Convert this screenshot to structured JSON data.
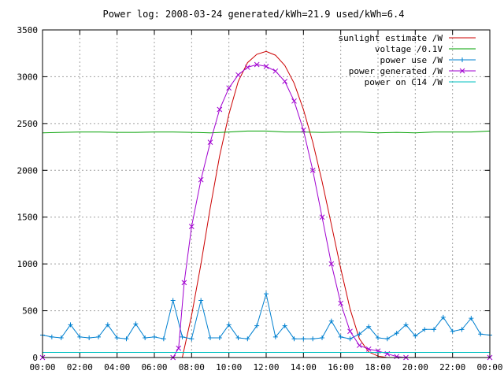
{
  "chart_data": {
    "type": "line",
    "title": "Power log: 2008-03-24 generated/kWh=21.9 used/kWh=6.4",
    "xlabel": "",
    "ylabel": "",
    "xlim": [
      0,
      24
    ],
    "ylim": [
      0,
      3500
    ],
    "grid": true,
    "legend_position": "top-right",
    "x_tick_labels": [
      "00:00",
      "02:00",
      "04:00",
      "06:00",
      "08:00",
      "10:00",
      "12:00",
      "14:00",
      "16:00",
      "18:00",
      "20:00",
      "22:00",
      "00:00"
    ],
    "x_ticks": [
      0,
      2,
      4,
      6,
      8,
      10,
      12,
      14,
      16,
      18,
      20,
      22,
      24
    ],
    "y_ticks": [
      0,
      500,
      1000,
      1500,
      2000,
      2500,
      3000,
      3500
    ],
    "y_tick_labels": [
      "0",
      "500",
      "1000",
      "1500",
      "2000",
      "2500",
      "3000",
      "3500"
    ],
    "series": [
      {
        "name": "sunlight estimate /W",
        "color": "#cc0000",
        "marker": "none",
        "x": [
          7.5,
          8.0,
          8.5,
          9.0,
          9.5,
          10.0,
          10.5,
          11.0,
          11.5,
          12.0,
          12.5,
          13.0,
          13.5,
          14.0,
          14.5,
          15.0,
          15.5,
          16.0,
          16.5,
          17.0,
          17.5,
          18.0,
          18.5
        ],
        "y": [
          0,
          450,
          1000,
          1600,
          2150,
          2600,
          2950,
          3150,
          3240,
          3270,
          3230,
          3120,
          2930,
          2650,
          2300,
          1880,
          1420,
          950,
          520,
          200,
          60,
          15,
          0
        ]
      },
      {
        "name": "voltage /0.1V",
        "color": "#00a000",
        "marker": "none",
        "x": [
          0,
          1,
          2,
          3,
          4,
          5,
          6,
          7,
          8,
          9,
          10,
          11,
          12,
          13,
          14,
          15,
          16,
          17,
          18,
          19,
          20,
          21,
          22,
          23,
          24
        ],
        "y": [
          2400,
          2405,
          2410,
          2410,
          2405,
          2405,
          2410,
          2410,
          2405,
          2400,
          2410,
          2420,
          2420,
          2410,
          2410,
          2405,
          2410,
          2410,
          2400,
          2405,
          2400,
          2410,
          2410,
          2410,
          2420
        ]
      },
      {
        "name": "power use /W",
        "color": "#0080d0",
        "marker": "+",
        "x": [
          0,
          0.5,
          1,
          1.5,
          2,
          2.5,
          3,
          3.5,
          4,
          4.5,
          5,
          5.5,
          6,
          6.5,
          7,
          7.5,
          8,
          8.5,
          9,
          9.5,
          10,
          10.5,
          11,
          11.5,
          12,
          12.5,
          13,
          13.5,
          14,
          14.5,
          15,
          15.5,
          16,
          16.5,
          17,
          17.5,
          18,
          18.5,
          19,
          19.5,
          20,
          20.5,
          21,
          21.5,
          22,
          22.5,
          23,
          23.5,
          24
        ],
        "y": [
          240,
          220,
          210,
          350,
          220,
          210,
          220,
          350,
          210,
          200,
          360,
          210,
          220,
          200,
          610,
          220,
          200,
          610,
          210,
          210,
          350,
          210,
          200,
          340,
          680,
          220,
          340,
          200,
          200,
          200,
          210,
          390,
          220,
          200,
          250,
          330,
          210,
          200,
          260,
          350,
          230,
          300,
          300,
          430,
          280,
          300,
          420,
          250,
          240
        ]
      },
      {
        "name": "power generated /W",
        "color": "#a000d0",
        "marker": "x",
        "x": [
          0,
          7.0,
          7.3,
          7.6,
          8.0,
          8.5,
          9.0,
          9.5,
          10.0,
          10.5,
          11.0,
          11.5,
          12.0,
          12.5,
          13.0,
          13.5,
          14.0,
          14.5,
          15.0,
          15.5,
          16.0,
          16.5,
          17.0,
          17.5,
          18.0,
          18.5,
          19.0,
          19.5,
          24
        ],
        "y": [
          0,
          0,
          100,
          800,
          1400,
          1900,
          2300,
          2650,
          2880,
          3020,
          3100,
          3130,
          3110,
          3060,
          2950,
          2740,
          2430,
          2000,
          1500,
          1000,
          580,
          280,
          130,
          90,
          70,
          40,
          10,
          0,
          0
        ]
      },
      {
        "name": "power on C14 /W",
        "color": "#00c0c0",
        "marker": "none",
        "x": [
          0,
          6,
          12,
          18,
          24
        ],
        "y": [
          55,
          55,
          55,
          55,
          55
        ]
      }
    ]
  }
}
